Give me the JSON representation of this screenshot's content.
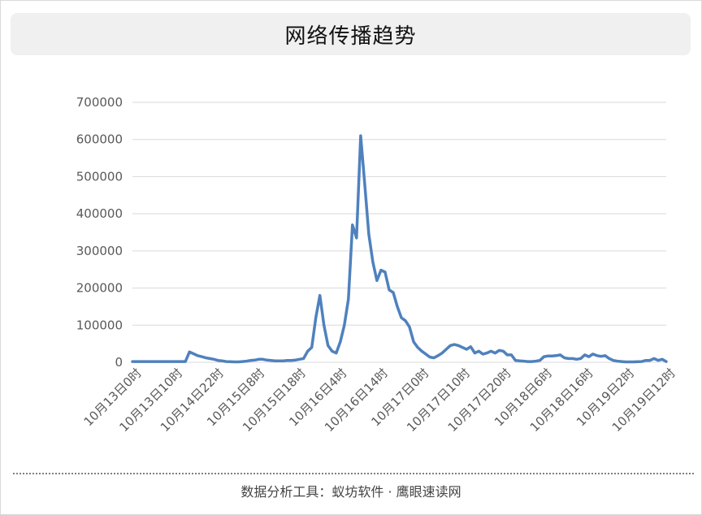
{
  "footer": {
    "text": "数据分析工具：蚁坊软件 · 鹰眼速读网"
  },
  "colors": {
    "line": "#4f81bd",
    "grid": "#d9d9d9",
    "axis_text": "#595959"
  },
  "chart_data": {
    "type": "line",
    "title": "网络传播趋势",
    "xlabel": "",
    "ylabel": "",
    "ylim": [
      0,
      700000
    ],
    "yticks": [
      0,
      100000,
      200000,
      300000,
      400000,
      500000,
      600000,
      700000
    ],
    "grid": true,
    "legend": "none",
    "x_tick_labels": [
      "10月13日0时",
      "10月13日10时",
      "10月14日22时",
      "10月15日8时",
      "10月15日18时",
      "10月16日4时",
      "10月16日14时",
      "10月17日0时",
      "10月17日10时",
      "10月17日20时",
      "10月18日6时",
      "10月18日16时",
      "10月19日2时",
      "10月19日12时"
    ],
    "series": [
      {
        "values": [
          2000,
          2000,
          2000,
          2000,
          2000,
          2000,
          2000,
          2000,
          2000,
          2000,
          2000,
          2000,
          2000,
          2000,
          28000,
          23000,
          18000,
          15000,
          12000,
          10000,
          8000,
          5000,
          4000,
          2000,
          1500,
          1000,
          1000,
          2000,
          3000,
          5000,
          6000,
          8000,
          8000,
          6000,
          5000,
          4000,
          4000,
          4000,
          5000,
          5000,
          6000,
          8000,
          10000,
          30000,
          40000,
          120000,
          180000,
          100000,
          45000,
          30000,
          25000,
          55000,
          100000,
          170000,
          370000,
          335000,
          610000,
          480000,
          345000,
          270000,
          220000,
          248000,
          243000,
          195000,
          188000,
          150000,
          120000,
          112000,
          95000,
          55000,
          40000,
          30000,
          22000,
          14000,
          12000,
          18000,
          25000,
          35000,
          45000,
          48000,
          45000,
          40000,
          35000,
          42000,
          25000,
          30000,
          22000,
          25000,
          30000,
          25000,
          32000,
          30000,
          20000,
          20000,
          5000,
          4000,
          3000,
          2000,
          2000,
          3000,
          5000,
          15000,
          17000,
          17000,
          18000,
          20000,
          12000,
          10000,
          10000,
          8000,
          10000,
          20000,
          15000,
          22000,
          18000,
          16000,
          18000,
          10000,
          5000,
          3000,
          2000,
          1000,
          1000,
          1000,
          1500,
          2000,
          5000,
          5000,
          10000,
          5000,
          8000,
          2000
        ]
      }
    ]
  }
}
